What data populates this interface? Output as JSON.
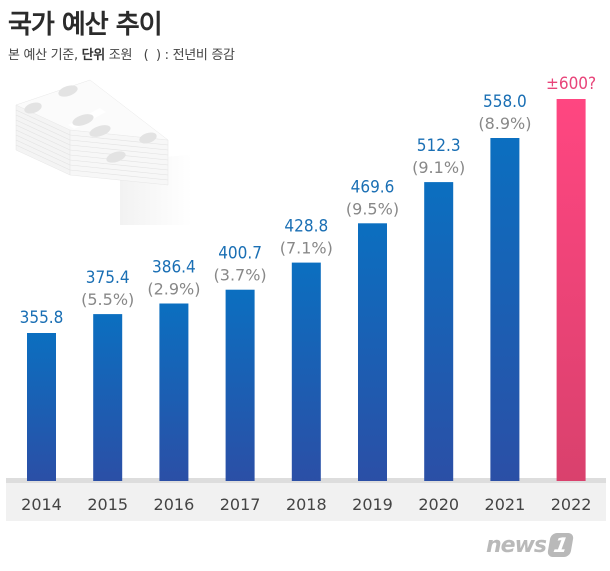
{
  "header": {
    "title": "국가 예산 추이",
    "subtitle_prefix": "본 예산 기준, ",
    "subtitle_unit_label": "단위",
    "subtitle_unit": " 조원   (  ) : 전년비 증감"
  },
  "chart_data": {
    "type": "bar",
    "title": "국가 예산 추이",
    "subtitle": "본 예산 기준, 단위 조원 ( ) : 전년비 증감",
    "xlabel": "",
    "ylabel": "조원",
    "categories": [
      "2014",
      "2015",
      "2016",
      "2017",
      "2018",
      "2019",
      "2020",
      "2021",
      "2022"
    ],
    "values": [
      355.8,
      375.4,
      386.4,
      400.7,
      428.8,
      469.6,
      512.3,
      558.0,
      600
    ],
    "value_labels": [
      "355.8",
      "375.4",
      "386.4",
      "400.7",
      "428.8",
      "469.6",
      "512.3",
      "558.0",
      "±600?"
    ],
    "growth_labels": [
      "",
      "(5.5%)",
      "(2.9%)",
      "(3.7%)",
      "(7.1%)",
      "(9.5%)",
      "(9.1%)",
      "(8.9%)",
      ""
    ],
    "forecast_index": 8,
    "ylim": [
      260,
      620
    ],
    "grid": false,
    "legend": "none",
    "colors": {
      "bar_top": "#0b6fc0",
      "bar_bottom": "#2b4fa6",
      "forecast_top": "#ff4681",
      "forecast_bottom": "#d9416d",
      "value_text": "#1a6fb4",
      "forecast_text": "#e8457a",
      "growth_text": "#888888",
      "axis_band": "#f1f1f1",
      "axis_line": "#dddddd"
    }
  },
  "decoration": {
    "illustration": "money-stack-icon"
  },
  "footer": {
    "logo_text": "news",
    "logo_mark": "1"
  }
}
